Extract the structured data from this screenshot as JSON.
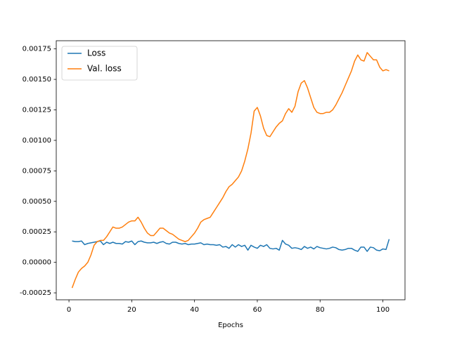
{
  "chart_data": {
    "type": "line",
    "xlabel": "Epochs",
    "x": [
      1,
      2,
      3,
      4,
      5,
      6,
      7,
      8,
      9,
      10,
      11,
      12,
      13,
      14,
      15,
      16,
      17,
      18,
      19,
      20,
      21,
      22,
      23,
      24,
      25,
      26,
      27,
      28,
      29,
      30,
      31,
      32,
      33,
      34,
      35,
      36,
      37,
      38,
      39,
      40,
      41,
      42,
      43,
      44,
      45,
      46,
      47,
      48,
      49,
      50,
      51,
      52,
      53,
      54,
      55,
      56,
      57,
      58,
      59,
      60,
      61,
      62,
      63,
      64,
      65,
      66,
      67,
      68,
      69,
      70,
      71,
      72,
      73,
      74,
      75,
      76,
      77,
      78,
      79,
      80,
      81,
      82,
      83,
      84,
      85,
      86,
      87,
      88,
      89,
      90,
      91,
      92,
      93,
      94,
      95,
      96,
      97,
      98,
      99,
      100,
      101,
      102
    ],
    "series": [
      {
        "name": "Loss",
        "color": "#1f77b4",
        "values": [
          0.000175,
          0.00017,
          0.00017,
          0.000175,
          0.000145,
          0.000155,
          0.00016,
          0.000165,
          0.00017,
          0.000175,
          0.000145,
          0.000165,
          0.000155,
          0.000165,
          0.000155,
          0.000155,
          0.00015,
          0.00017,
          0.000165,
          0.000175,
          0.000145,
          0.00017,
          0.000175,
          0.000165,
          0.00016,
          0.00016,
          0.000165,
          0.000155,
          0.000165,
          0.00017,
          0.000155,
          0.00015,
          0.000165,
          0.000165,
          0.000155,
          0.00015,
          0.000155,
          0.000145,
          0.00015,
          0.00015,
          0.000155,
          0.00016,
          0.000145,
          0.00015,
          0.000145,
          0.000145,
          0.00014,
          0.000145,
          0.000125,
          0.00013,
          0.000115,
          0.000145,
          0.000125,
          0.000145,
          0.00013,
          0.00014,
          0.0001,
          0.00014,
          0.000125,
          0.000115,
          0.00014,
          0.00013,
          0.000145,
          0.000115,
          0.00011,
          0.000115,
          0.0001,
          0.00018,
          0.00015,
          0.00014,
          0.000115,
          0.00012,
          0.000115,
          0.000105,
          0.00013,
          0.000115,
          0.000125,
          0.00011,
          0.00013,
          0.00012,
          0.000115,
          0.00011,
          0.000115,
          0.000125,
          0.00012,
          0.000105,
          0.0001,
          0.000105,
          0.000115,
          0.000115,
          0.0001,
          9e-05,
          0.000125,
          0.000125,
          9e-05,
          0.000125,
          0.00012,
          0.0001,
          9.5e-05,
          0.00011,
          0.000105,
          0.00019
        ]
      },
      {
        "name": "Val. loss",
        "color": "#ff7f0e",
        "values": [
          -0.00021,
          -0.00014,
          -8e-05,
          -5e-05,
          -3e-05,
          0.0,
          6e-05,
          0.00014,
          0.00017,
          0.00018,
          0.00018,
          0.00021,
          0.00025,
          0.00029,
          0.00028,
          0.00028,
          0.00029,
          0.00031,
          0.00033,
          0.00034,
          0.00034,
          0.00037,
          0.00033,
          0.00028,
          0.00024,
          0.00022,
          0.00022,
          0.00025,
          0.00028,
          0.00028,
          0.00026,
          0.00024,
          0.00023,
          0.00021,
          0.00019,
          0.00018,
          0.00017,
          0.00018,
          0.00021,
          0.00024,
          0.00028,
          0.00033,
          0.00035,
          0.00036,
          0.00037,
          0.00041,
          0.00045,
          0.00049,
          0.00053,
          0.00058,
          0.00062,
          0.00064,
          0.00067,
          0.0007,
          0.00075,
          0.00083,
          0.00093,
          0.00106,
          0.00124,
          0.00127,
          0.0012,
          0.0011,
          0.00104,
          0.00103,
          0.00107,
          0.00111,
          0.00114,
          0.00116,
          0.00122,
          0.00126,
          0.00123,
          0.00128,
          0.0014,
          0.00147,
          0.00149,
          0.00143,
          0.00135,
          0.00127,
          0.00123,
          0.00122,
          0.00122,
          0.00123,
          0.00123,
          0.00125,
          0.00129,
          0.00134,
          0.00139,
          0.00145,
          0.00151,
          0.00157,
          0.00165,
          0.0017,
          0.00166,
          0.00165,
          0.00172,
          0.00169,
          0.00166,
          0.00166,
          0.0016,
          0.00157,
          0.00158,
          0.00157
        ]
      }
    ],
    "xlim": [
      -4.05,
      107.05
    ],
    "xticks": [
      0,
      20,
      40,
      60,
      80,
      100
    ],
    "ylim": [
      -0.000307,
      0.001817
    ],
    "yticks": [
      -0.00025,
      {
        "value": 0,
        "label": "0.00000"
      },
      0.00025,
      {
        "value": 0.0005,
        "label": "0.00050"
      },
      0.00075,
      {
        "value": 0.001,
        "label": "0.00100"
      },
      0.00125,
      {
        "value": 0.0015,
        "label": "0.00150"
      },
      0.00175
    ],
    "grid": false,
    "legend": "upper left"
  }
}
